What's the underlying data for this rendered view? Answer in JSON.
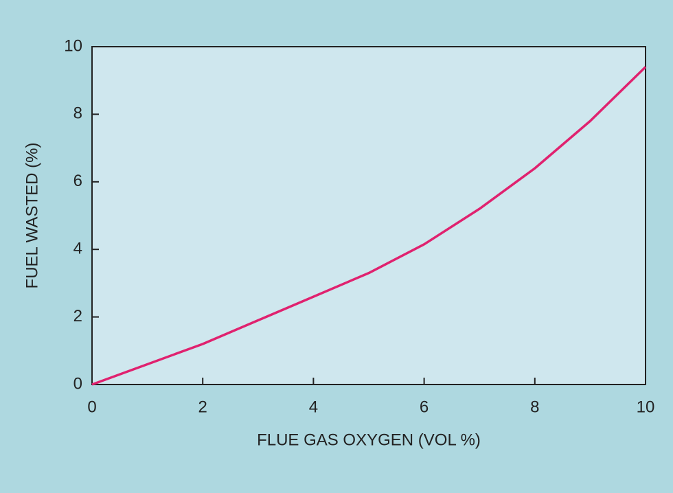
{
  "chart_data": {
    "type": "line",
    "x_label": "FLUE GAS OXYGEN (VOL %)",
    "y_label": "FUEL WASTED (%)",
    "x": [
      0,
      1,
      2,
      3,
      4,
      5,
      6,
      7,
      8,
      9,
      10
    ],
    "series": [
      {
        "name": "Fuel wasted",
        "color": "#e0226f",
        "values": [
          0,
          0.6,
          1.2,
          1.9,
          2.6,
          3.3,
          4.15,
          5.2,
          6.4,
          7.8,
          9.4
        ]
      }
    ],
    "xlim": [
      0,
      10
    ],
    "xticks": [
      0,
      2,
      4,
      6,
      8,
      10
    ],
    "ylim": [
      0,
      10
    ],
    "yticks": [
      0,
      2,
      4,
      6,
      8,
      10
    ],
    "grid": false,
    "legend": false
  }
}
